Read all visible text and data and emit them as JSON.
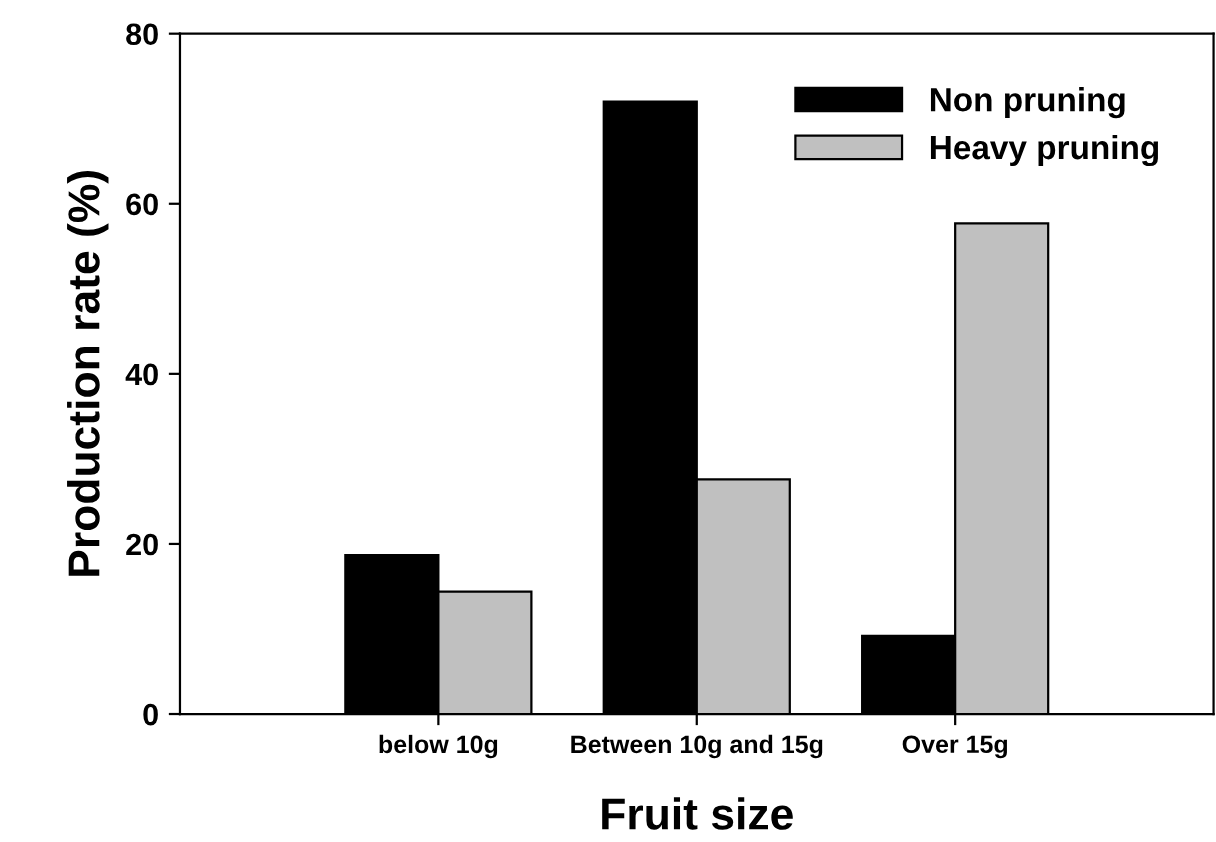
{
  "chart_data": {
    "type": "bar",
    "xlabel": "Fruit size",
    "ylabel": "Production rate (%)",
    "categories": [
      "below 10g",
      "Between 10g and 15g",
      "Over 15g"
    ],
    "series": [
      {
        "name": "Non pruning",
        "color": "#000000",
        "values": [
          18.7,
          72.0,
          9.2
        ]
      },
      {
        "name": "Heavy pruning",
        "color": "#c0c0c0",
        "values": [
          14.4,
          27.6,
          57.7
        ]
      }
    ],
    "ylim": [
      0,
      80
    ],
    "yticks": [
      0,
      20,
      40,
      60,
      80
    ],
    "grid": false,
    "legend": "top right"
  }
}
